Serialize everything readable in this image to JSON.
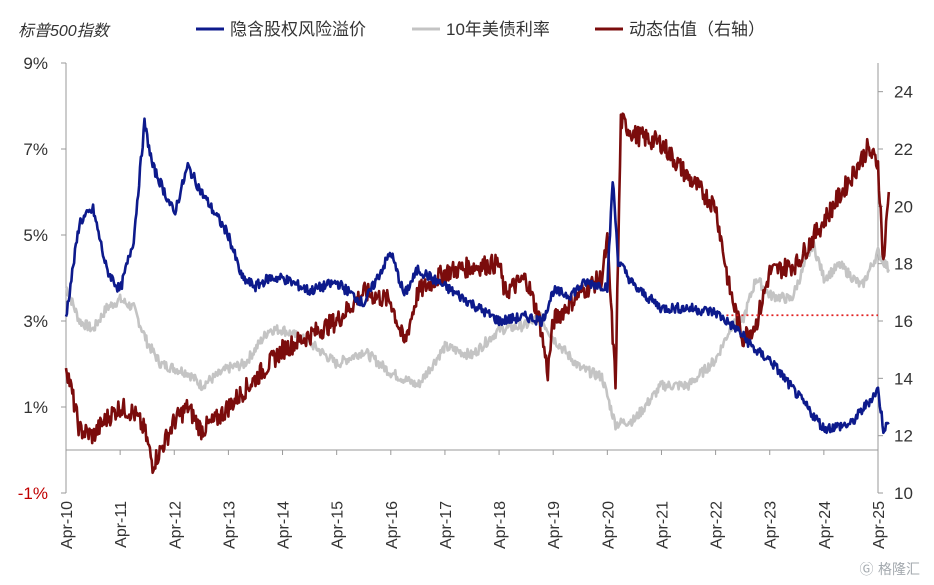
{
  "chart_data": {
    "type": "line",
    "title": "标普500指数",
    "xlabel": "",
    "ylabel": "",
    "x_ticks": [
      "Apr-10",
      "Apr-11",
      "Apr-12",
      "Apr-13",
      "Apr-14",
      "Apr-15",
      "Apr-16",
      "Apr-17",
      "Apr-18",
      "Apr-19",
      "Apr-20",
      "Apr-21",
      "Apr-22",
      "Apr-23",
      "Apr-24",
      "Apr-25"
    ],
    "xlim": [
      2010.0,
      2025.0
    ],
    "y_left": {
      "ylim": [
        -1,
        9
      ],
      "ticks": [
        "-1%",
        "1%",
        "3%",
        "5%",
        "7%",
        "9%"
      ],
      "tick_values": [
        -1,
        1,
        3,
        5,
        7,
        9
      ],
      "zero_line": 0
    },
    "y_right": {
      "ylim": [
        10,
        25
      ],
      "ticks": [
        "10",
        "12",
        "14",
        "16",
        "18",
        "20",
        "22",
        "24"
      ],
      "tick_values": [
        10,
        12,
        14,
        16,
        18,
        20,
        22,
        24
      ]
    },
    "reference_line": {
      "axis": "right",
      "value": 16.2,
      "x_start": 2022.2,
      "x_end": 2025.0,
      "color": "#e02020",
      "style": "dotted"
    },
    "series": [
      {
        "name": "隐含股权风险溢价",
        "axis": "left",
        "color": "#0d1a8c",
        "x": [
          2010.0,
          2010.25,
          2010.5,
          2010.75,
          2011.0,
          2011.25,
          2011.45,
          2011.6,
          2011.75,
          2012.0,
          2012.25,
          2012.5,
          2012.75,
          2013.0,
          2013.25,
          2013.5,
          2013.75,
          2014.0,
          2014.5,
          2015.0,
          2015.5,
          2016.0,
          2016.25,
          2016.5,
          2017.0,
          2017.5,
          2018.0,
          2018.5,
          2018.8,
          2019.0,
          2019.3,
          2019.6,
          2020.0,
          2020.1,
          2020.2,
          2020.5,
          2021.0,
          2021.5,
          2022.0,
          2022.4,
          2022.75,
          2023.0,
          2023.5,
          2024.0,
          2024.5,
          2025.0,
          2025.1,
          2025.2
        ],
        "values": [
          3.1,
          5.3,
          5.6,
          4.2,
          3.7,
          4.9,
          7.6,
          6.6,
          6.2,
          5.5,
          6.6,
          6.0,
          5.5,
          5.0,
          4.0,
          3.8,
          4.0,
          4.0,
          3.7,
          3.9,
          3.4,
          4.6,
          3.6,
          4.2,
          3.8,
          3.4,
          3.0,
          3.1,
          3.0,
          3.7,
          3.6,
          3.9,
          3.8,
          6.3,
          4.4,
          3.8,
          3.3,
          3.3,
          3.2,
          2.8,
          2.3,
          2.1,
          1.3,
          0.5,
          0.6,
          1.4,
          0.5,
          0.6
        ]
      },
      {
        "name": "10年美债利率",
        "axis": "left",
        "color": "#c4c4c4",
        "x": [
          2010.0,
          2010.25,
          2010.5,
          2010.75,
          2011.0,
          2011.25,
          2011.5,
          2011.75,
          2012.0,
          2012.25,
          2012.5,
          2012.75,
          2013.0,
          2013.3,
          2013.75,
          2014.0,
          2014.5,
          2015.0,
          2015.5,
          2016.0,
          2016.5,
          2017.0,
          2017.5,
          2018.0,
          2018.5,
          2018.75,
          2019.0,
          2019.5,
          2019.9,
          2020.15,
          2020.5,
          2021.0,
          2021.5,
          2022.0,
          2022.3,
          2022.5,
          2022.75,
          2023.0,
          2023.4,
          2023.8,
          2024.0,
          2024.3,
          2024.7,
          2025.0,
          2025.2
        ],
        "values": [
          3.8,
          3.0,
          2.8,
          3.3,
          3.5,
          3.3,
          2.5,
          2.0,
          1.9,
          1.8,
          1.5,
          1.7,
          1.9,
          2.0,
          2.8,
          2.8,
          2.5,
          2.0,
          2.3,
          1.8,
          1.5,
          2.4,
          2.2,
          2.8,
          2.9,
          3.1,
          2.6,
          1.9,
          1.7,
          0.6,
          0.7,
          1.5,
          1.5,
          2.1,
          2.9,
          3.0,
          4.0,
          3.6,
          3.5,
          4.8,
          4.0,
          4.3,
          3.8,
          4.6,
          4.2
        ]
      },
      {
        "name": "动态估值（右轴）",
        "axis": "right",
        "color": "#7b0c0c",
        "x": [
          2010.0,
          2010.25,
          2010.5,
          2010.75,
          2011.0,
          2011.25,
          2011.45,
          2011.6,
          2011.75,
          2012.0,
          2012.25,
          2012.5,
          2012.75,
          2013.0,
          2013.5,
          2014.0,
          2014.5,
          2015.0,
          2015.5,
          2016.0,
          2016.25,
          2016.5,
          2017.0,
          2017.5,
          2018.0,
          2018.1,
          2018.5,
          2018.75,
          2018.9,
          2019.0,
          2019.5,
          2019.9,
          2020.0,
          2020.15,
          2020.25,
          2020.5,
          2021.0,
          2021.5,
          2022.0,
          2022.25,
          2022.5,
          2022.75,
          2023.0,
          2023.5,
          2024.0,
          2024.5,
          2024.8,
          2025.0,
          2025.1,
          2025.2
        ],
        "values": [
          14.5,
          12.2,
          12.0,
          12.6,
          13.0,
          12.8,
          12.2,
          11.0,
          11.5,
          12.5,
          13.0,
          12.2,
          12.5,
          13.0,
          14.0,
          15.0,
          15.5,
          16.0,
          17.0,
          16.7,
          15.2,
          17.0,
          17.7,
          17.9,
          18.0,
          17.0,
          17.5,
          16.0,
          14.2,
          16.0,
          17.0,
          17.5,
          18.8,
          13.8,
          23.0,
          22.5,
          22.2,
          21.0,
          20.0,
          17.2,
          15.4,
          15.9,
          17.7,
          18.0,
          19.5,
          21.0,
          22.0,
          21.5,
          18.0,
          20.5
        ]
      }
    ]
  },
  "watermark": "格隆汇"
}
